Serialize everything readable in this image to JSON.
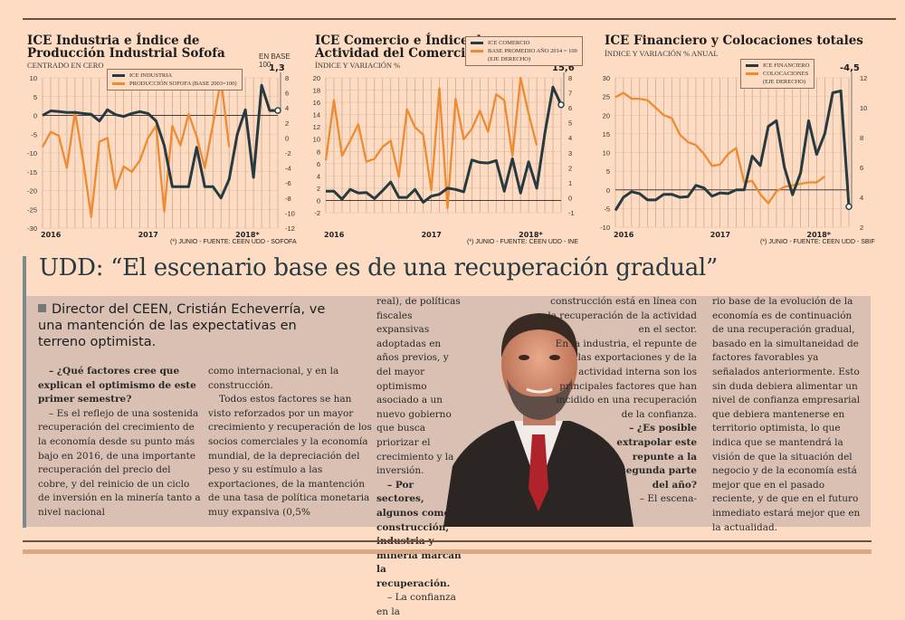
{
  "charts": [
    {
      "title": "ICE Industria e Índice de\nProducción Industrial Sofofa",
      "subtitle": "CENTRADO EN CERO",
      "unit_label": "EN BASE 100",
      "callout": "1,3",
      "legend": [
        "ICE INDUSTRIA",
        "PRODUCCIÓN SOFOFA (BASE 2003=100)"
      ],
      "source": "(*) JUNIO - FUENTE: CEEN UDD - SOFOFA",
      "years": [
        "2016",
        "2017",
        "2018*"
      ]
    },
    {
      "title": "ICE Comercio e Índice de\nActividad del Comercio",
      "subtitle": "ÍNDICE Y VARIACIÓN %",
      "callout": "15,6",
      "legend": [
        "ICE COMERCIO",
        "BASE PROMEDIO AÑO 2014 = 100",
        "(EJE DERECHO)"
      ],
      "source": "(*) JUNIO - FUENTE: CEEN UDD - INE",
      "years": [
        "2016",
        "2017",
        "2018*"
      ]
    },
    {
      "title": "ICE Financiero y Colocaciones totales",
      "subtitle": "ÍNDICE Y VARIACIÓN % ANUAL",
      "callout": "-4,5",
      "legend": [
        "ICE FINANCIERO",
        "COLOCACIONES",
        "(EJE DERECHO)"
      ],
      "source": "(*) JUNIO - FUENTE: CEEN UDD - SBIF",
      "years": [
        "2016",
        "2017",
        "2018*"
      ]
    }
  ],
  "chart_data": [
    {
      "type": "line",
      "title": "ICE Industria e Índice de Producción Industrial Sofofa",
      "subtitle": "CENTRADO EN CERO",
      "x": [
        "2016-01",
        "2016-02",
        "2016-03",
        "2016-04",
        "2016-05",
        "2016-06",
        "2016-07",
        "2016-08",
        "2016-09",
        "2016-10",
        "2016-11",
        "2016-12",
        "2017-01",
        "2017-02",
        "2017-03",
        "2017-04",
        "2017-05",
        "2017-06",
        "2017-07",
        "2017-08",
        "2017-09",
        "2017-10",
        "2017-11",
        "2017-12",
        "2018-01",
        "2018-02",
        "2018-03",
        "2018-04",
        "2018-05",
        "2018-06"
      ],
      "xticks": [
        "2016",
        "2017",
        "2018*"
      ],
      "ylim_left": [
        -30,
        10
      ],
      "yticks_left": [
        10,
        5,
        0,
        -5,
        -10,
        -15,
        -20,
        -25,
        -30
      ],
      "ylim_right": [
        -12,
        8
      ],
      "yticks_right": [
        8,
        6,
        4,
        2,
        0,
        -2,
        -4,
        -6,
        -8,
        -10,
        -12
      ],
      "grid": true,
      "legend_position": "top-center",
      "series": [
        {
          "name": "ICE INDUSTRIA",
          "axis": "left",
          "color": "#263a40",
          "values": [
            0,
            1.2,
            1.0,
            0.8,
            0.8,
            0.5,
            0.3,
            -1.5,
            1.5,
            0.2,
            -0.3,
            0.5,
            1.0,
            0.5,
            -1.5,
            -8,
            -19,
            -19,
            -19,
            -8.5,
            -19,
            -19,
            -22,
            -17,
            -5,
            1.5,
            -16.5,
            8,
            1.3,
            1.3
          ]
        },
        {
          "name": "PRODUCCIÓN SOFOFA (BASE 2003=100)",
          "axis": "right",
          "color": "#ef8a30",
          "values": [
            -1.2,
            0.8,
            0.3,
            -4,
            3.5,
            -3,
            -10.5,
            -0.5,
            0,
            -6.8,
            -3.8,
            -4.5,
            -3,
            0,
            1.6,
            -9.8,
            1.6,
            -1,
            3.2,
            0.2,
            -4,
            1.8,
            7.8,
            -1.2
          ]
        }
      ],
      "annotation": "1,3",
      "source": "(*) JUNIO - FUENTE: CEEN UDD - SOFOFA"
    },
    {
      "type": "line",
      "title": "ICE Comercio e Índice de Actividad del Comercio",
      "subtitle": "ÍNDICE Y VARIACIÓN %",
      "x": [
        "2016-01",
        "2016-02",
        "2016-03",
        "2016-04",
        "2016-05",
        "2016-06",
        "2016-07",
        "2016-08",
        "2016-09",
        "2016-10",
        "2016-11",
        "2016-12",
        "2017-01",
        "2017-02",
        "2017-03",
        "2017-04",
        "2017-05",
        "2017-06",
        "2017-07",
        "2017-08",
        "2017-09",
        "2017-10",
        "2017-11",
        "2017-12",
        "2018-01",
        "2018-02",
        "2018-03",
        "2018-04",
        "2018-05",
        "2018-06"
      ],
      "xticks": [
        "2016",
        "2017",
        "2018*"
      ],
      "ylim_left": [
        -2,
        20
      ],
      "yticks_left": [
        20,
        18,
        16,
        14,
        12,
        10,
        8,
        6,
        4,
        2,
        0,
        -2
      ],
      "ylim_right": [
        -1,
        8
      ],
      "yticks_right": [
        8,
        7,
        6,
        5,
        4,
        3,
        2,
        1,
        0,
        -1
      ],
      "grid": true,
      "legend_position": "top-right",
      "series": [
        {
          "name": "ICE COMERCIO",
          "axis": "left",
          "color": "#263a40",
          "values": [
            1.5,
            1.5,
            0.2,
            1.8,
            1.2,
            1.3,
            0.3,
            1.6,
            3.0,
            0.5,
            0.5,
            1.8,
            -0.3,
            0.7,
            1.0,
            2.0,
            1.8,
            1.4,
            6.6,
            6.2,
            6.1,
            6.5,
            1.5,
            6.8,
            1.2,
            6.3,
            2.0,
            11,
            18.5,
            15.6
          ]
        },
        {
          "name": "BASE PROMEDIO AÑO 2014 = 100 (EJE DERECHO)",
          "axis": "right",
          "color": "#ef8a30",
          "values": [
            2.5,
            6.5,
            2.8,
            3.8,
            4.9,
            2.4,
            2.6,
            3.4,
            3.8,
            1.4,
            5.9,
            4.7,
            4.2,
            0.5,
            7.3,
            -0.7,
            6.6,
            3.9,
            4.6,
            5.8,
            4.4,
            6.9,
            6.5,
            2.8,
            8.0,
            5.6,
            3.5
          ]
        }
      ],
      "annotation": "15,6",
      "source": "(*) JUNIO - FUENTE: CEEN UDD - INE"
    },
    {
      "type": "line",
      "title": "ICE Financiero y Colocaciones totales",
      "subtitle": "ÍNDICE Y VARIACIÓN % ANUAL",
      "x": [
        "2016-01",
        "2016-02",
        "2016-03",
        "2016-04",
        "2016-05",
        "2016-06",
        "2016-07",
        "2016-08",
        "2016-09",
        "2016-10",
        "2016-11",
        "2016-12",
        "2017-01",
        "2017-02",
        "2017-03",
        "2017-04",
        "2017-05",
        "2017-06",
        "2017-07",
        "2017-08",
        "2017-09",
        "2017-10",
        "2017-11",
        "2017-12",
        "2018-01",
        "2018-02",
        "2018-03",
        "2018-04",
        "2018-05",
        "2018-06"
      ],
      "xticks": [
        "2016",
        "2017",
        "2018*"
      ],
      "ylim_left": [
        -10,
        30
      ],
      "yticks_left": [
        30,
        25,
        20,
        15,
        10,
        5,
        0,
        -5,
        -10
      ],
      "ylim_right": [
        2,
        12
      ],
      "yticks_right": [
        12,
        10,
        8,
        6,
        4,
        2
      ],
      "grid": true,
      "legend_position": "top-center",
      "series": [
        {
          "name": "ICE FINANCIERO",
          "axis": "left",
          "color": "#263a40",
          "values": [
            -5.5,
            -2,
            -0.5,
            -1,
            -2.7,
            -2.7,
            -1.2,
            -1.2,
            -2,
            -1.8,
            1.2,
            0.5,
            -1.7,
            -0.8,
            -1,
            0,
            0,
            9,
            6.5,
            17,
            18.5,
            6,
            -1.3,
            4.5,
            18.5,
            9.5,
            15,
            26,
            26.5,
            -4.5
          ]
        },
        {
          "name": "COLOCACIONES (EJE DERECHO)",
          "axis": "right",
          "color": "#ef8a30",
          "values": [
            10.7,
            11.0,
            10.6,
            10.6,
            10.5,
            10.0,
            9.5,
            9.3,
            8.2,
            7.7,
            7.5,
            6.9,
            6.1,
            6.2,
            6.9,
            7.3,
            5.0,
            5.1,
            4.2,
            3.6,
            4.4,
            4.7,
            4.8,
            4.9,
            5.0,
            5.0,
            5.4
          ]
        }
      ],
      "annotation": "-4,5",
      "source": "(*) JUNIO - FUENTE: CEEN UDD - SBIF"
    }
  ],
  "article": {
    "headline": "UDD: “El escenario base es de una recuperación gradual”",
    "lead": "Director del CEEN, Cristián Echeverría, ve una mantención de las expectativas en terreno optimista.",
    "col1_q": "– ¿Qué factores cree que explican el optimismo de este primer semestre?",
    "col1_a": "– Es el reflejo de una sostenida recuperación del crecimiento de la economía desde su punto más bajo en 2016, de una importante recuperación del precio del cobre, y del reinicio de un ciclo de inversión en la minería tanto a nivel nacional",
    "col2_p1": "como internacional, y en la construcción.",
    "col2_p2": "Todos estos factores se han visto reforzados por un mayor crecimiento y recuperación de los socios comerciales y la economía mundial, de la depreciación del peso y su estímulo a las exportaciones, de la mantención de una tasa de política monetaria muy expansiva (0,5%",
    "col3_p1": "real), de políticas fiscales expansivas adoptadas en años previos, y del mayor optimismo asociado a un nuevo gobierno que busca priorizar el crecimiento y la inversión.",
    "col3_q": "– Por sectores, algunos como construcción, industria y minería marcan la recuperación.",
    "col3_a": "– La confianza en la",
    "col4_p1": "construcción está en línea con la recuperación de la actividad en el sector.",
    "col4_p2": "En la industria, el repunte de las exportaciones y de la actividad interna son los principales factores que han incidido en una recuperación de la confianza.",
    "col4_q": "– ¿Es posible extrapolar este repunte a la segunda parte del año?",
    "col4_a": "– El escena-",
    "col5": "rio base de la evolución de la economía es de continuación de una recuperación gradual, basado en la simultaneidad de factores favorables ya señalados anteriormente. Esto sin duda debiera alimentar un nivel de confianza empresarial que debiera mantenerse en territorio optimista, lo que indica que se mantendrá la visión de que la situación del negocio y de la economía está mejor que en el pasado reciente, y de que en el futuro inmediato estará mejor que en la actualidad."
  },
  "colors": {
    "background": "#fddcc3",
    "dark_series": "#263a40",
    "orange_series": "#ef8a30",
    "article_box": "#d9c0b2",
    "headline": "#263a40"
  }
}
